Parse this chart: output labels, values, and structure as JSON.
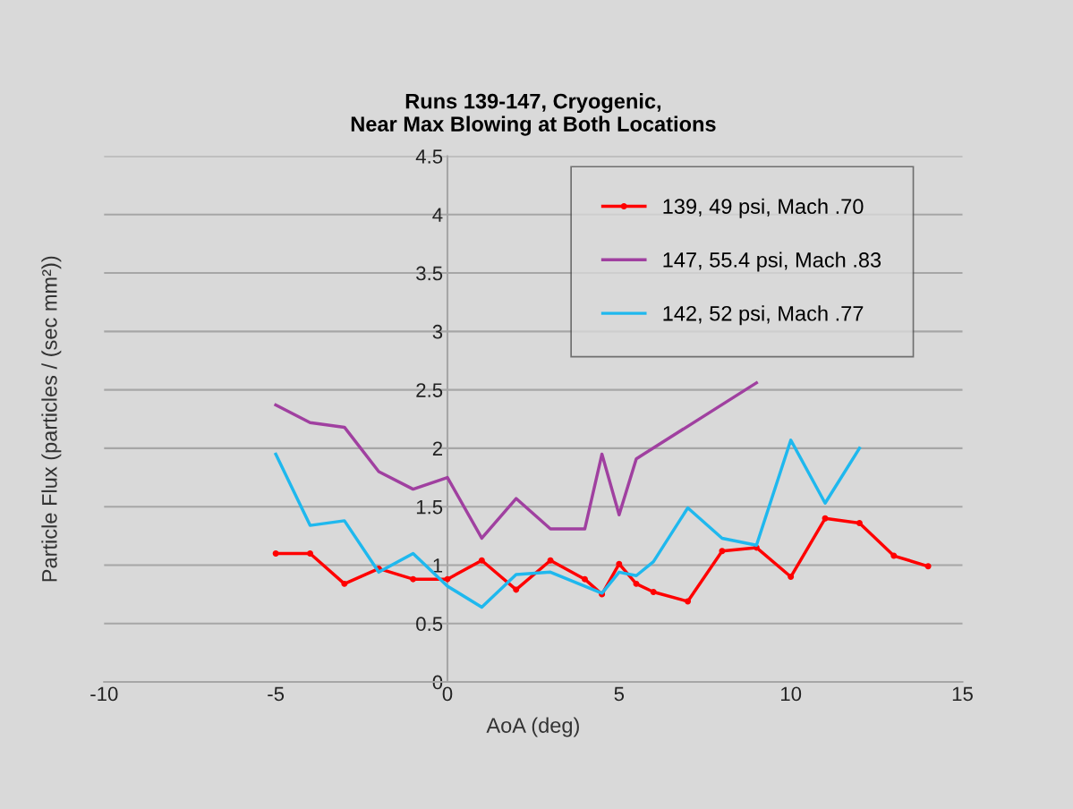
{
  "chart_data": {
    "type": "line",
    "title": "Runs 139-147, Cryogenic,\nNear Max Blowing at Both Locations",
    "xlabel": "AoA (deg)",
    "ylabel": "Particle Flux (particles / (sec mm²))",
    "xlim": [
      -10,
      15
    ],
    "xticks": [
      -10,
      -5,
      0,
      5,
      10,
      15
    ],
    "ylim": [
      0,
      4.5
    ],
    "yticks": [
      0,
      0.5,
      1,
      1.5,
      2,
      2.5,
      3,
      3.5,
      4,
      4.5
    ],
    "grid": "y",
    "legend": "top right",
    "series": [
      {
        "name": "139, 49 psi, Mach .70",
        "color": "#ff0000",
        "marker": "circle",
        "x": [
          -5,
          -4,
          -3,
          -2,
          -1,
          0,
          1,
          2,
          3,
          4,
          4.5,
          5,
          5.5,
          6,
          7,
          8,
          9,
          10,
          11,
          12,
          13,
          14
        ],
        "values": [
          1.1,
          1.1,
          0.84,
          0.97,
          0.88,
          0.88,
          1.04,
          0.79,
          1.04,
          0.88,
          0.75,
          1.01,
          0.84,
          0.77,
          0.69,
          1.12,
          1.15,
          0.9,
          1.4,
          1.36,
          1.08,
          0.99
        ]
      },
      {
        "name": "147, 55.4 psi, Mach .83",
        "color": "#a040a0",
        "x": [
          -5,
          -4,
          -3,
          -2,
          -1,
          0,
          1,
          2,
          3,
          4,
          4.5,
          5,
          5.5,
          9
        ],
        "values": [
          2.37,
          2.22,
          2.18,
          1.8,
          1.65,
          1.75,
          1.23,
          1.57,
          1.31,
          1.31,
          1.95,
          1.43,
          1.91,
          2.56
        ]
      },
      {
        "name": "142, 52 psi, Mach .77",
        "color": "#1fb8ee",
        "x": [
          -5,
          -4,
          -3,
          -2,
          -1,
          0,
          1,
          2,
          3,
          4.5,
          5,
          5.5,
          6,
          7,
          8,
          9,
          10,
          11,
          12
        ],
        "values": [
          1.95,
          1.34,
          1.38,
          0.94,
          1.1,
          0.82,
          0.64,
          0.92,
          0.94,
          0.76,
          0.94,
          0.91,
          1.03,
          1.49,
          1.23,
          1.17,
          2.07,
          1.53,
          2.0
        ]
      }
    ]
  }
}
